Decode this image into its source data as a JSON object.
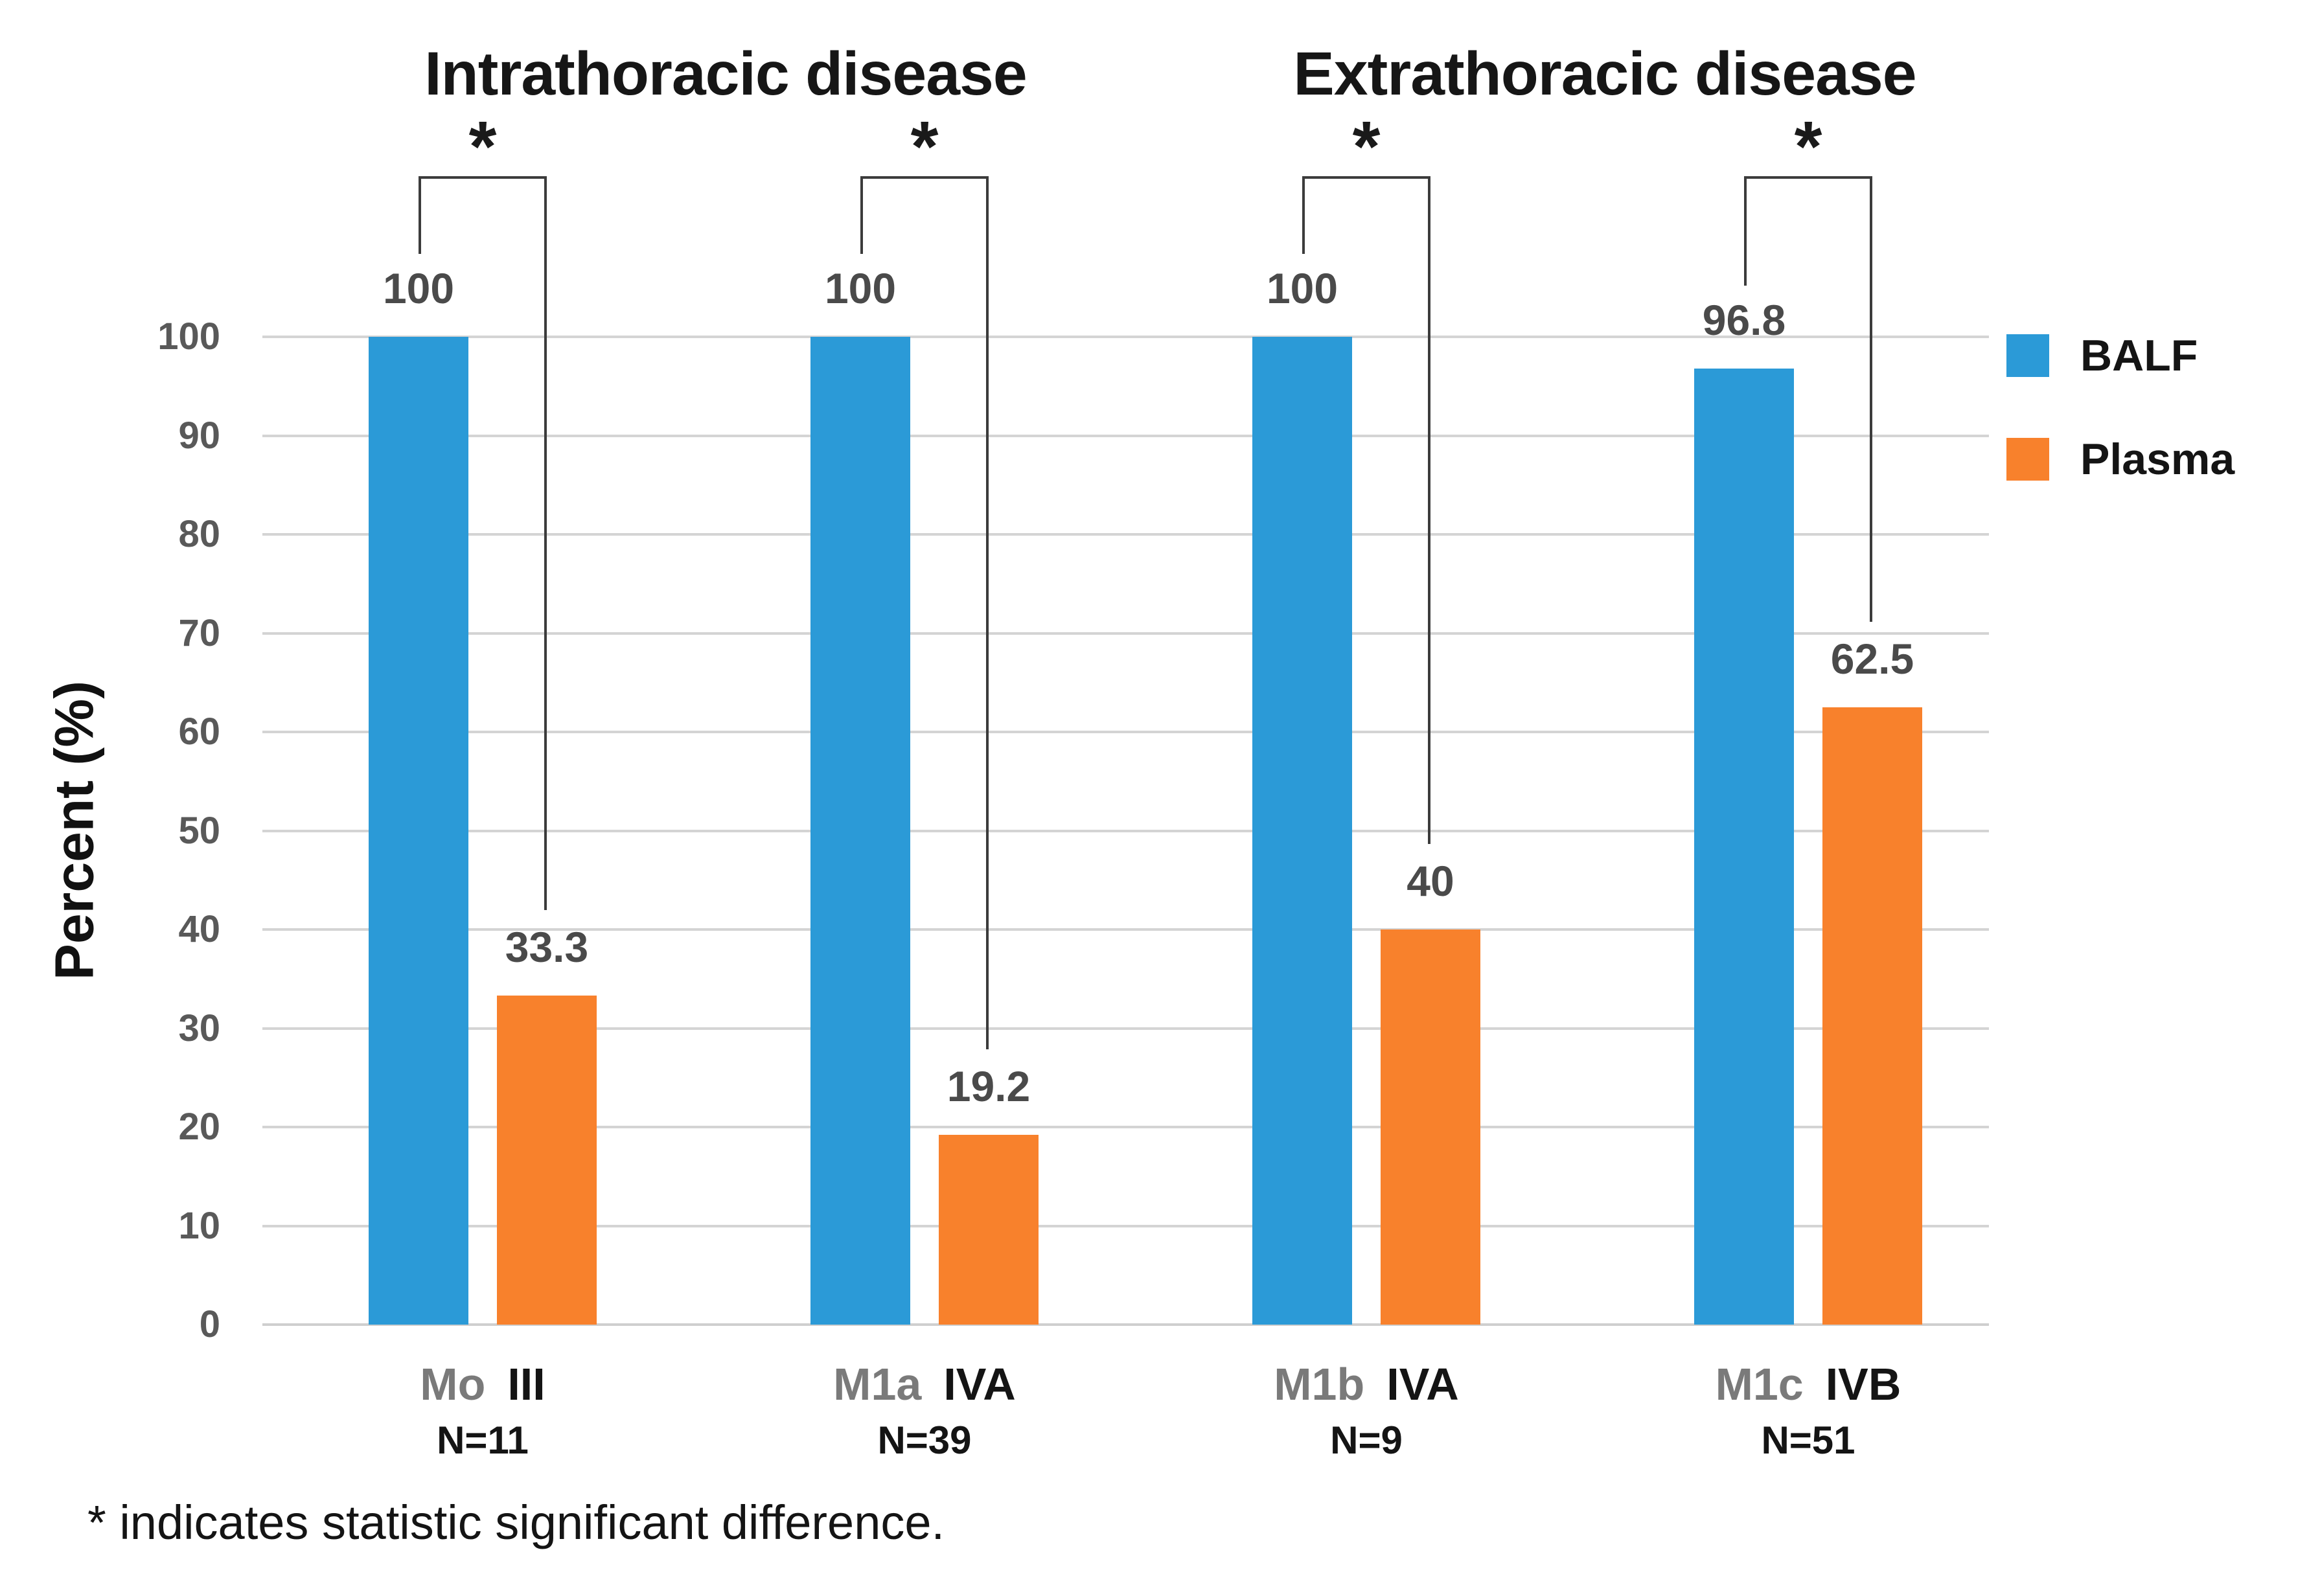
{
  "figure": {
    "footnote": "* indicates statistic significant difference.",
    "background_color": "#ffffff",
    "grid_color": "#d4d4d4",
    "baseline_color": "#cfcfcf",
    "bracket_color": "#3c3c3c",
    "value_label_color": "#4a4a4a",
    "tick_label_color": "#595959",
    "category_m_color": "#7a7a7a",
    "text_color": "#141414"
  },
  "chart_data": {
    "type": "bar",
    "section_titles": [
      "Intrathoracic disease",
      "Extrathoracic disease"
    ],
    "ylabel": "Percent (%)",
    "ylim": [
      0,
      100
    ],
    "yticks": [
      0,
      10,
      20,
      30,
      40,
      50,
      60,
      70,
      80,
      90,
      100
    ],
    "grid": true,
    "legend_position": "right",
    "categories": [
      {
        "m_stage": "Mo",
        "tnm_stage": "III",
        "n_label": "N=11",
        "section": 0
      },
      {
        "m_stage": "M1a",
        "tnm_stage": "IVA",
        "n_label": "N=39",
        "section": 0
      },
      {
        "m_stage": "M1b",
        "tnm_stage": "IVA",
        "n_label": "N=9",
        "section": 1
      },
      {
        "m_stage": "M1c",
        "tnm_stage": "IVB",
        "n_label": "N=51",
        "section": 1
      }
    ],
    "series": [
      {
        "name": "BALF",
        "color": "#2b9ad7",
        "values": [
          100,
          100,
          100,
          96.8
        ],
        "labels": [
          "100",
          "100",
          "100",
          "96.8"
        ]
      },
      {
        "name": "Plasma",
        "color": "#f8812c",
        "values": [
          33.3,
          19.2,
          40,
          62.5
        ],
        "labels": [
          "33.3",
          "19.2",
          "40",
          "62.5"
        ]
      }
    ],
    "significance_marker": "*",
    "significant_pairs": [
      true,
      true,
      true,
      true
    ]
  }
}
